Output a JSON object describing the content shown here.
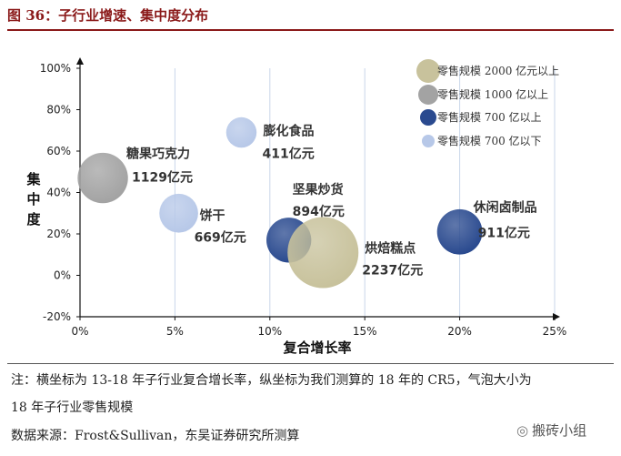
{
  "header": {
    "title": "图 36：子行业增速、集中度分布"
  },
  "chart_data": {
    "type": "bubble",
    "title": "图 36：子行业增速、集中度分布",
    "xlabel": "复合增长率",
    "ylabel": "集中度",
    "xlim": [
      0,
      25
    ],
    "ylim": [
      -20,
      100
    ],
    "x_ticks": [
      "0%",
      "5%",
      "10%",
      "15%",
      "20%",
      "25%"
    ],
    "y_ticks": [
      "-20%",
      "0%",
      "20%",
      "40%",
      "60%",
      "80%",
      "100%"
    ],
    "legend": [
      {
        "label": "零售规模 2000 亿元以上",
        "color": "#c8c29c"
      },
      {
        "label": "零售规模 1000 亿以上",
        "color": "#a3a3a3"
      },
      {
        "label": "零售规模 700 亿以上",
        "color": "#2a4a8f"
      },
      {
        "label": "零售规模 700 亿以下",
        "color": "#b7c8e8"
      }
    ],
    "points": [
      {
        "name": "膨化食品",
        "value_label": "411亿元",
        "x": 8.5,
        "y": 69,
        "size": 411,
        "color": "#b7c8e8"
      },
      {
        "name": "糖果巧克力",
        "value_label": "1129亿元",
        "x": 1.2,
        "y": 47,
        "size": 1129,
        "color": "#a3a3a3"
      },
      {
        "name": "饼干",
        "value_label": "669亿元",
        "x": 5.2,
        "y": 30,
        "size": 669,
        "color": "#b7c8e8"
      },
      {
        "name": "坚果炒货",
        "value_label": "894亿元",
        "x": 11,
        "y": 17,
        "size": 894,
        "color": "#2a4a8f"
      },
      {
        "name": "烘焙糕点",
        "value_label": "2237亿元",
        "x": 12.8,
        "y": 11,
        "size": 2237,
        "color": "#c8c29c"
      },
      {
        "name": "休闲卤制品",
        "value_label": "911亿元",
        "x": 20,
        "y": 21,
        "size": 911,
        "color": "#2a4a8f"
      }
    ]
  },
  "footer": {
    "note_line1": "注：横坐标为 13-18 年子行业复合增长率，纵坐标为我们测算的 18 年的 CR5，气泡大小为",
    "note_line2": "18 年子行业零售规模",
    "source": "数据来源：Frost&Sullivan，东吴证券研究所测算",
    "watermark": "搬砖小组"
  }
}
